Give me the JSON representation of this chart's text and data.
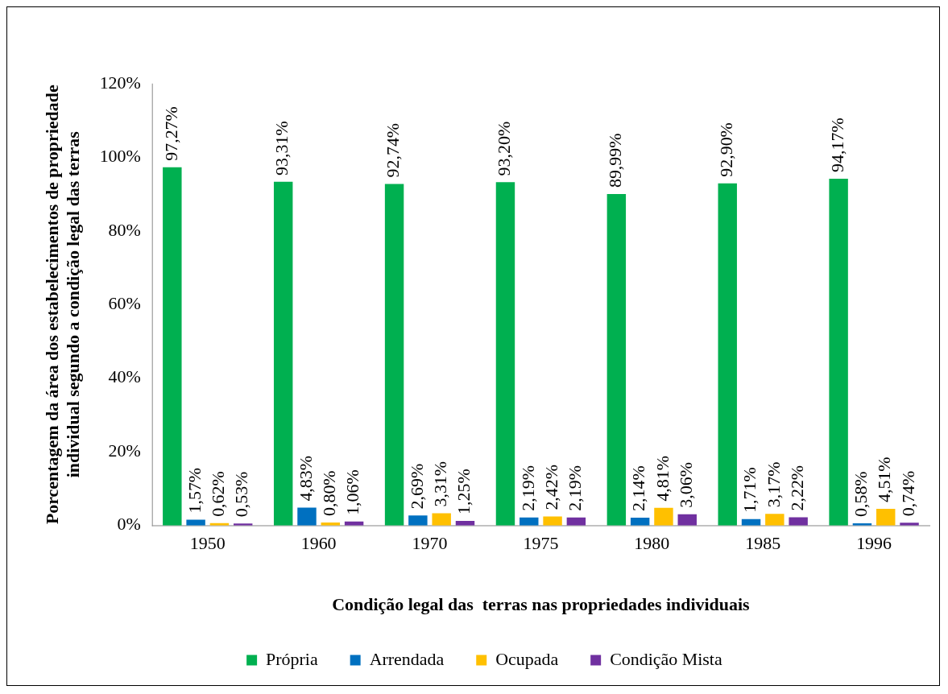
{
  "chart_data": {
    "type": "bar",
    "xlabel": "Condição legal das  terras nas propriedades individuais",
    "ylabel": "Porcentagem da área dos estabelecimentos de propriedade individual segundo a condição legal das terras",
    "categories": [
      "1950",
      "1960",
      "1970",
      "1975",
      "1980",
      "1985",
      "1996"
    ],
    "series": [
      {
        "name": "Própria",
        "color": "#00b050",
        "values": [
          97.27,
          93.31,
          92.74,
          93.2,
          89.99,
          92.9,
          94.17
        ],
        "value_labels": [
          "97,27%",
          "93,31%",
          "92,74%",
          "93,20%",
          "89,99%",
          "92,90%",
          "94,17%"
        ]
      },
      {
        "name": "Arrendada",
        "color": "#0070c0",
        "values": [
          1.57,
          4.83,
          2.69,
          2.19,
          2.14,
          1.71,
          0.58
        ],
        "value_labels": [
          "1,57%",
          "4,83%",
          "2,69%",
          "2,19%",
          "2,14%",
          "1,71%",
          "0,58%"
        ]
      },
      {
        "name": "Ocupada",
        "color": "#ffc000",
        "values": [
          0.62,
          0.8,
          3.31,
          2.42,
          4.81,
          3.17,
          4.51
        ],
        "value_labels": [
          "0,62%",
          "0,80%",
          "3,31%",
          "2,42%",
          "4,81%",
          "3,17%",
          "4,51%"
        ]
      },
      {
        "name": "Condição Mista",
        "color": "#7030a0",
        "values": [
          0.53,
          1.06,
          1.25,
          2.19,
          3.06,
          2.22,
          0.74
        ],
        "value_labels": [
          "0,53%",
          "1,06%",
          "1,25%",
          "2,19%",
          "3,06%",
          "2,22%",
          "0,74%"
        ]
      }
    ],
    "ylim": [
      0,
      120
    ],
    "yticks": [
      {
        "value": 0,
        "label": "0%"
      },
      {
        "value": 20,
        "label": "20%"
      },
      {
        "value": 40,
        "label": "40%"
      },
      {
        "value": 60,
        "label": "60%"
      },
      {
        "value": 80,
        "label": "80%"
      },
      {
        "value": 100,
        "label": "100%"
      },
      {
        "value": 120,
        "label": "120%"
      }
    ],
    "grid": false,
    "legend": "bottom"
  }
}
